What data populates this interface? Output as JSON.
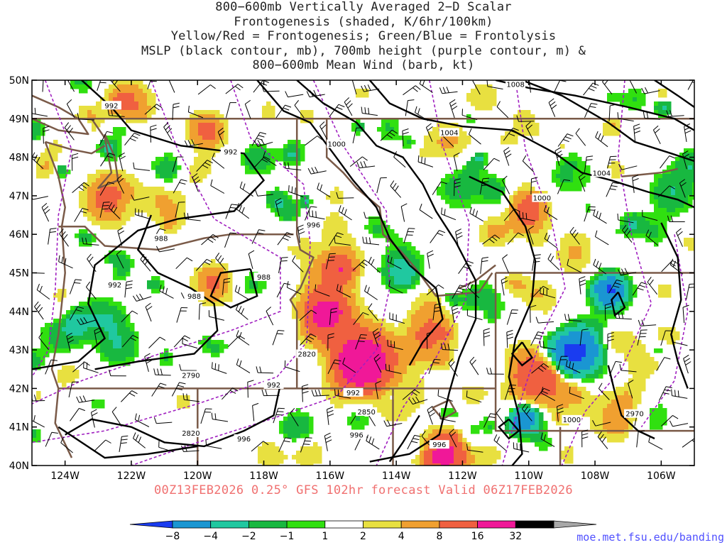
{
  "title": {
    "lines": [
      "800−600mb Vertically Averaged 2−D Scalar",
      "Frontogenesis (shaded, K/6hr/100km)",
      "Yellow/Red = Frontogenesis;  Green/Blue = Frontolysis",
      "MSLP (black contour, mb), 700mb height (purple contour, m) &",
      "800−600mb Mean Wind (barb, kt)"
    ]
  },
  "map": {
    "lat_ticks": [
      "50N",
      "49N",
      "48N",
      "47N",
      "46N",
      "45N",
      "44N",
      "43N",
      "42N",
      "41N",
      "40N"
    ],
    "lon_ticks": [
      "124W",
      "122W",
      "120W",
      "118W",
      "116W",
      "114W",
      "112W",
      "110W",
      "108W",
      "106W"
    ],
    "lat_range": [
      40,
      50
    ],
    "lon_range": [
      -125,
      -105
    ],
    "mslp_labels": [
      "992",
      "992",
      "1000",
      "1004",
      "1008",
      "1004",
      "1000",
      "996",
      "988",
      "988",
      "988",
      "992",
      "992",
      "992",
      "996",
      "996",
      "996",
      "1000"
    ],
    "height_labels": [
      "2820",
      "2790",
      "2820",
      "2850",
      "2970"
    ],
    "colors": {
      "mslp_contour": "#000000",
      "height_contour": "#a020c0",
      "borders": "#7a5a48",
      "barbs": "#000000"
    }
  },
  "forecast": "00Z13FEB2026 0.25° GFS 102hr forecast Valid 06Z17FEB2026",
  "colorbar": {
    "labels": [
      "−8",
      "−4",
      "−2",
      "−1",
      "1",
      "2",
      "4",
      "8",
      "16",
      "32"
    ],
    "colors": [
      "#1a3cf0",
      "#1a96d2",
      "#20c8a0",
      "#18b840",
      "#30e010",
      "#ffffff",
      "#e8e040",
      "#f0a030",
      "#f06040",
      "#f01898",
      "#000000",
      "#a8a8a8"
    ]
  },
  "credit": "moe.met.fsu.edu/banding"
}
